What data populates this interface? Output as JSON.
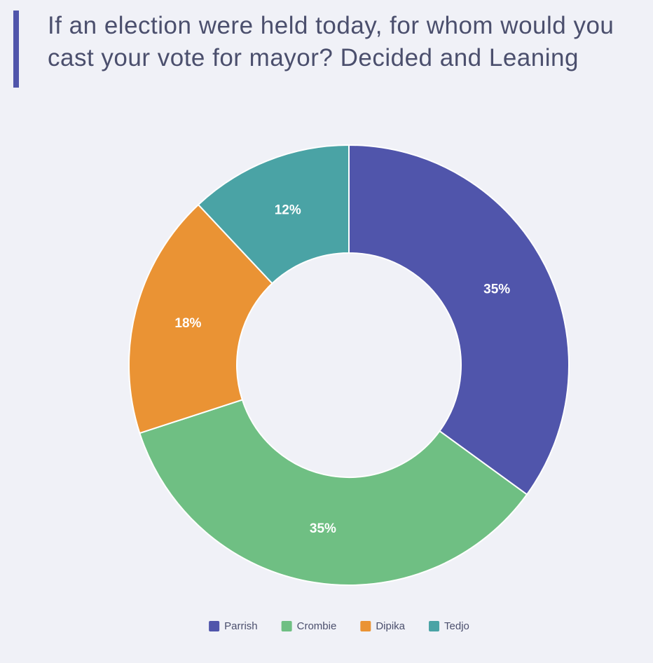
{
  "chart_data": {
    "type": "pie",
    "title": "If an election were held today, for whom would you cast your vote for mayor? Decided and Leaning",
    "categories": [
      "Parrish",
      "Crombie",
      "Dipika",
      "Tedjo"
    ],
    "values": [
      35,
      35,
      18,
      12
    ],
    "value_labels": [
      "35%",
      "35%",
      "18%",
      "12%"
    ],
    "colors": [
      "#5055ab",
      "#6fbf83",
      "#ea9334",
      "#4aa3a5"
    ],
    "legend": "bottom"
  }
}
